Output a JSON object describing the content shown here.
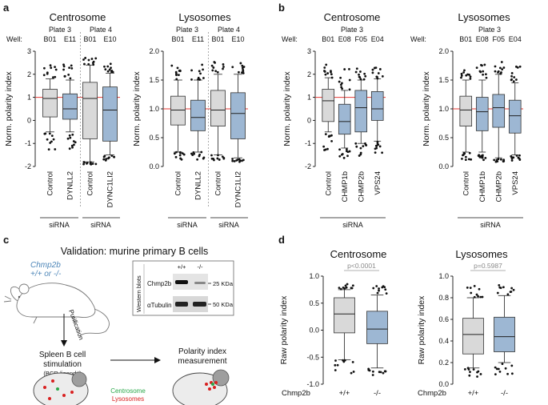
{
  "labels": {
    "a": "a",
    "b": "b",
    "c": "c",
    "d": "d"
  },
  "colors": {
    "control": "#d9d9d9",
    "treated": "#9db7d3",
    "reference_line": "#e53935",
    "mouse_genotype": "#4d86b8"
  },
  "text": {
    "centrosome": "Centrosome",
    "lysosomes": "Lysosomes",
    "well": "Well:",
    "plate3": "Plate 3",
    "plate4": "Plate 4",
    "sirna": "siRNA",
    "validation_title": "Validation: murine primary B cells",
    "mouse_genotype_1": "Chmp2b",
    "mouse_genotype_2": "+/+ or -/-",
    "purification": "Purification",
    "western_blots": "Western blots",
    "blot_col_wt": "+/+",
    "blot_col_ko": "-/-",
    "blot_chmp2b": "Chmp2b",
    "blot_tubulin": "αTubulin",
    "kda25": "25 KDa",
    "kda50": "50 KDa",
    "stim_1": "Spleen B cell",
    "stim_2": "stimulation",
    "stim_3": "(BCR-ligand⁺)",
    "meas_1": "Polarity index",
    "meas_2": "measurement",
    "legend_centrosome": "Centrosome",
    "legend_lysosomes": "Lysosomes",
    "chmp2b_axis": "Chmp2b",
    "p_centrosome": "p<0.0001",
    "p_lysosomes": "p=0.5987"
  },
  "chart_data": [
    {
      "id": "a-centrosome",
      "type": "box",
      "ylabel": "Norm. polarity index",
      "ylim": [
        -2,
        3
      ],
      "ticks": [
        -2,
        -1,
        0,
        1,
        2,
        3
      ],
      "reference_line": 1,
      "categories": [
        "Control",
        "DYNLL2",
        "Control",
        "DYNC1LI2"
      ],
      "wells": [
        "B01",
        "E11",
        "B01",
        "E10"
      ],
      "boxes": [
        {
          "whisker_low": -0.5,
          "q1": 0.15,
          "median": 0.95,
          "q3": 1.35,
          "whisker_high": 1.8
        },
        {
          "whisker_low": -0.5,
          "q1": 0.05,
          "median": 0.5,
          "q3": 1.15,
          "whisker_high": 1.75
        },
        {
          "whisker_low": -1.8,
          "q1": -0.8,
          "median": 0.95,
          "q3": 1.65,
          "whisker_high": 2.4
        },
        {
          "whisker_low": -1.5,
          "q1": -0.9,
          "median": 0.45,
          "q3": 1.45,
          "whisker_high": 2.05
        }
      ]
    },
    {
      "id": "a-lysosomes",
      "type": "box",
      "ylabel": "Norm. polarity index",
      "ylim": [
        0,
        2
      ],
      "ticks": [
        0.0,
        0.5,
        1.0,
        1.5,
        2.0
      ],
      "reference_line": 1,
      "categories": [
        "Control",
        "DYNLL2",
        "Control",
        "DYNC1LI2"
      ],
      "wells": [
        "B01",
        "E11",
        "B01",
        "E10"
      ],
      "boxes": [
        {
          "whisker_low": 0.25,
          "q1": 0.72,
          "median": 0.98,
          "q3": 1.22,
          "whisker_high": 1.5
        },
        {
          "whisker_low": 0.25,
          "q1": 0.62,
          "median": 0.85,
          "q3": 1.15,
          "whisker_high": 1.5
        },
        {
          "whisker_low": 0.2,
          "q1": 0.7,
          "median": 0.98,
          "q3": 1.32,
          "whisker_high": 1.6
        },
        {
          "whisker_low": 0.15,
          "q1": 0.48,
          "median": 0.92,
          "q3": 1.28,
          "whisker_high": 1.6
        }
      ]
    },
    {
      "id": "b-centrosome",
      "type": "box",
      "ylabel": "Norm. polarity index",
      "ylim": [
        -2,
        3
      ],
      "ticks": [
        -2,
        -1,
        0,
        1,
        2,
        3
      ],
      "reference_line": 1,
      "categories": [
        "Control",
        "CHMP1b",
        "CHMP2b",
        "VPS24"
      ],
      "wells": [
        "B01",
        "E08",
        "F05",
        "E04"
      ],
      "boxes": [
        {
          "whisker_low": -0.5,
          "q1": -0.05,
          "median": 0.85,
          "q3": 1.35,
          "whisker_high": 1.85
        },
        {
          "whisker_low": -1.2,
          "q1": -0.6,
          "median": -0.05,
          "q3": 0.7,
          "whisker_high": 1.3
        },
        {
          "whisker_low": -1.0,
          "q1": -0.5,
          "median": 0.55,
          "q3": 1.3,
          "whisker_high": 1.75
        },
        {
          "whisker_low": -0.9,
          "q1": 0.0,
          "median": 0.5,
          "q3": 1.25,
          "whisker_high": 1.8
        }
      ]
    },
    {
      "id": "b-lysosomes",
      "type": "box",
      "ylabel": "Norm. polarity index",
      "ylim": [
        0,
        2
      ],
      "ticks": [
        0.0,
        0.5,
        1.0,
        1.5,
        2.0
      ],
      "reference_line": 1,
      "categories": [
        "Control",
        "CHMP1b",
        "CHMP2b",
        "VPS24"
      ],
      "wells": [
        "B01",
        "E08",
        "F05",
        "E04"
      ],
      "boxes": [
        {
          "whisker_low": 0.25,
          "q1": 0.7,
          "median": 0.98,
          "q3": 1.22,
          "whisker_high": 1.5
        },
        {
          "whisker_low": 0.25,
          "q1": 0.62,
          "median": 0.95,
          "q3": 1.2,
          "whisker_high": 1.5
        },
        {
          "whisker_low": 0.15,
          "q1": 0.68,
          "median": 1.02,
          "q3": 1.25,
          "whisker_high": 1.6
        },
        {
          "whisker_low": 0.2,
          "q1": 0.58,
          "median": 0.88,
          "q3": 1.15,
          "whisker_high": 1.45
        }
      ]
    },
    {
      "id": "d-centrosome",
      "type": "box",
      "ylabel": "Raw polarity index",
      "ylim": [
        -1.0,
        1.0
      ],
      "ticks": [
        -1.0,
        -0.5,
        0.0,
        0.5,
        1.0
      ],
      "categories": [
        "+/+",
        "-/-"
      ],
      "boxes": [
        {
          "whisker_low": -0.55,
          "q1": -0.05,
          "median": 0.3,
          "q3": 0.6,
          "whisker_high": 0.75
        },
        {
          "whisker_low": -0.7,
          "q1": -0.25,
          "median": 0.02,
          "q3": 0.35,
          "whisker_high": 0.65
        }
      ]
    },
    {
      "id": "d-lysosomes",
      "type": "box",
      "ylabel": "Raw polarity index",
      "ylim": [
        0.0,
        1.0
      ],
      "ticks": [
        0.0,
        0.2,
        0.4,
        0.6,
        0.8,
        1.0
      ],
      "categories": [
        "+/+",
        "-/-"
      ],
      "boxes": [
        {
          "whisker_low": 0.15,
          "q1": 0.28,
          "median": 0.46,
          "q3": 0.61,
          "whisker_high": 0.8
        },
        {
          "whisker_low": 0.2,
          "q1": 0.3,
          "median": 0.44,
          "q3": 0.62,
          "whisker_high": 0.82
        }
      ]
    }
  ]
}
